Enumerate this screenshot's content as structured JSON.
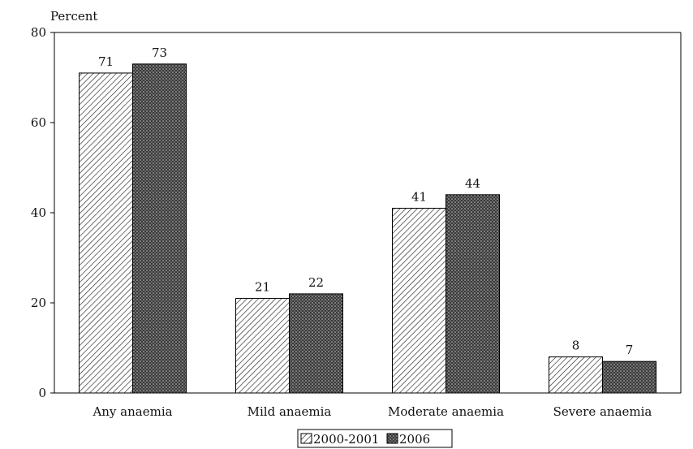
{
  "chart_data": {
    "type": "bar",
    "ylabel": "Percent",
    "xlabel": "",
    "title": "",
    "ylim": [
      0,
      80
    ],
    "yticks": [
      0,
      20,
      40,
      60,
      80
    ],
    "categories": [
      "Any anaemia",
      "Mild anaemia",
      "Moderate anaemia",
      "Severe anaemia"
    ],
    "series": [
      {
        "name": "2000-2001",
        "values": [
          71,
          21,
          41,
          8
        ],
        "pattern": "diagonal-hatch",
        "color": "#ffffff"
      },
      {
        "name": "2006",
        "values": [
          73,
          22,
          44,
          7
        ],
        "pattern": "dark-crosshatch",
        "color": "#444444"
      }
    ],
    "legend_position": "bottom-center",
    "grid": false,
    "data_labels": true
  }
}
